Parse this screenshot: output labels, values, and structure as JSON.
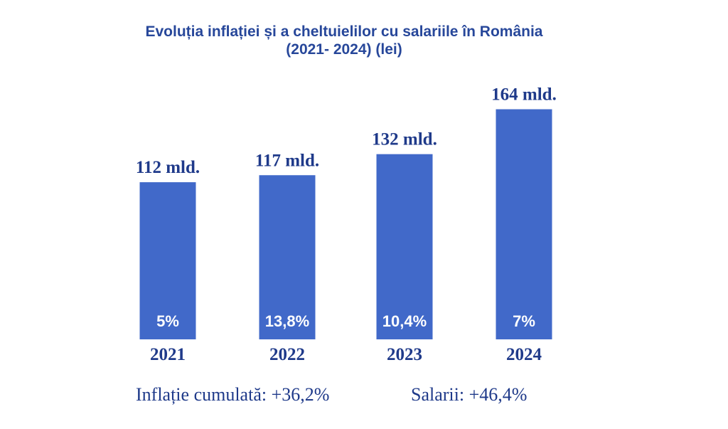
{
  "chart_data": {
    "type": "bar",
    "title": "Evoluția inflației și a cheltuielilor cu salariile în România",
    "subtitle": "(2021- 2024) (lei)",
    "categories": [
      "2021",
      "2022",
      "2023",
      "2024"
    ],
    "values": [
      112,
      117,
      132,
      164
    ],
    "value_labels": [
      "112 mld.",
      "117 mld.",
      "132 mld.",
      "164 mld."
    ],
    "inflation_labels": [
      "5%",
      "13,8%",
      "10,4%",
      "7%"
    ],
    "ylim": [
      0,
      180
    ],
    "grid": false,
    "bar_color": "#4169c9"
  },
  "footer": {
    "inflation": "Inflație cumulată: +36,2%",
    "salaries": "Salarii: +46,4%"
  }
}
